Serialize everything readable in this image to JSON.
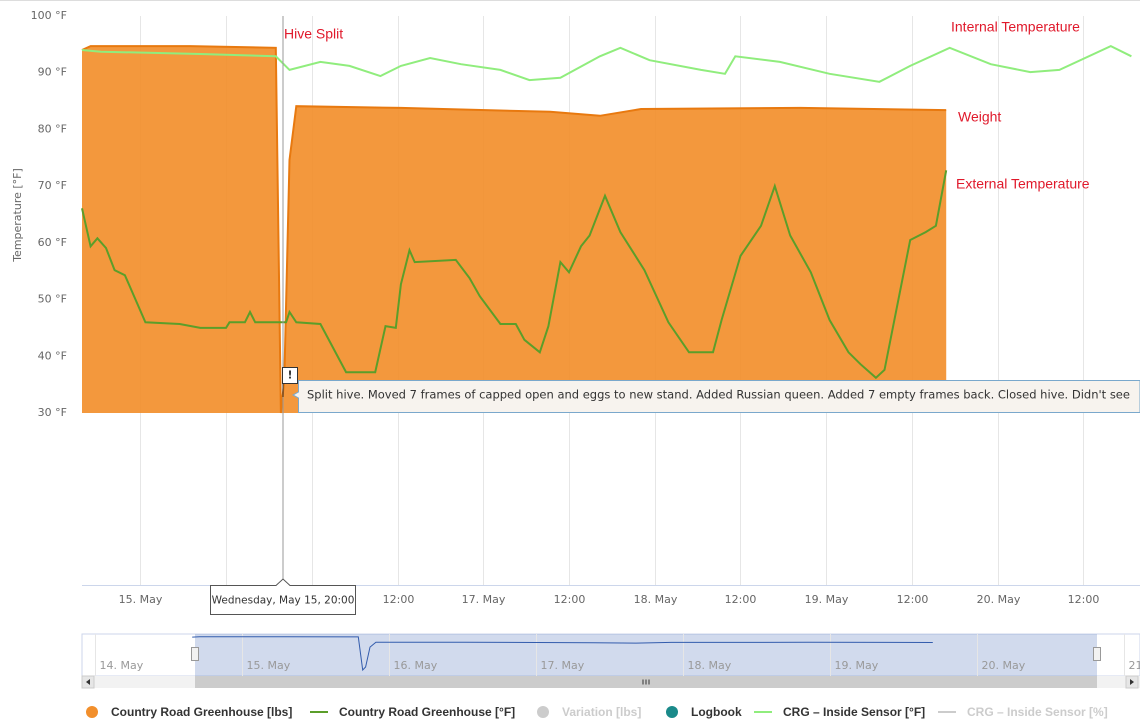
{
  "chart_data": {
    "type": "area-line",
    "y_axis_title": "Temperature [°F]",
    "ylim": [
      30,
      100
    ],
    "yticks": [
      {
        "value": 30,
        "label": "30 °F"
      },
      {
        "value": 40,
        "label": "40 °F"
      },
      {
        "value": 50,
        "label": "50 °F"
      },
      {
        "value": 60,
        "label": "60 °F"
      },
      {
        "value": 70,
        "label": "70 °F"
      },
      {
        "value": 80,
        "label": "80 °F"
      },
      {
        "value": 90,
        "label": "90 °F"
      },
      {
        "value": 100,
        "label": "100 °F"
      }
    ],
    "xlim": [
      14.66,
      20.83
    ],
    "xticks": [
      {
        "value": 15,
        "label": "15. May"
      },
      {
        "value": 15.5,
        "label": "12:00"
      },
      {
        "value": 16,
        "label": "16. May"
      },
      {
        "value": 16.5,
        "label": "12:00"
      },
      {
        "value": 17,
        "label": "17. May"
      },
      {
        "value": 17.5,
        "label": "12:00"
      },
      {
        "value": 18,
        "label": "18. May"
      },
      {
        "value": 18.5,
        "label": "12:00"
      },
      {
        "value": 19,
        "label": "19. May"
      },
      {
        "value": 19.5,
        "label": "12:00"
      },
      {
        "value": 20,
        "label": "20. May"
      },
      {
        "value": 20.5,
        "label": "12:00"
      }
    ],
    "grid": true,
    "series": [
      {
        "name": "Country Road Greenhouse [lbs]",
        "color": "#f28f2c",
        "kind": "area",
        "visible": true,
        "x": [
          14.66,
          14.71,
          15.29,
          15.79,
          15.82,
          15.84,
          15.87,
          15.91,
          16.52,
          17.39,
          17.68,
          17.92,
          18.85,
          19.7
        ],
        "values": [
          94.0,
          94.7,
          94.7,
          94.4,
          30,
          35.8,
          74.6,
          84.1,
          83.8,
          83.1,
          82.4,
          83.6,
          83.8,
          83.4
        ]
      },
      {
        "name": "Country Road Greenhouse [°F]",
        "color": "#5b9e2a",
        "kind": "line",
        "visible": true,
        "x": [
          14.66,
          14.71,
          14.75,
          14.8,
          14.85,
          14.91,
          15.03,
          15.23,
          15.35,
          15.5,
          15.52,
          15.61,
          15.64,
          15.67,
          15.85,
          15.87,
          15.91,
          16.05,
          16.2,
          16.37,
          16.43,
          16.49,
          16.52,
          16.57,
          16.6,
          16.84,
          16.92,
          16.98,
          17.1,
          17.19,
          17.24,
          17.33,
          17.38,
          17.45,
          17.5,
          17.57,
          17.62,
          17.71,
          17.8,
          17.94,
          18.08,
          18.2,
          18.34,
          18.39,
          18.5,
          18.62,
          18.7,
          18.79,
          18.91,
          19.02,
          19.13,
          19.2,
          19.29,
          19.34,
          19.49,
          19.58,
          19.64,
          19.7
        ],
        "values": [
          66.1,
          59.4,
          60.8,
          59.1,
          55.2,
          54.3,
          46.0,
          45.7,
          45.0,
          45.0,
          46.0,
          46.0,
          47.8,
          46.0,
          46.0,
          47.8,
          46.0,
          45.7,
          37.2,
          37.2,
          45.3,
          45.0,
          52.7,
          58.7,
          56.6,
          57.0,
          53.8,
          50.6,
          45.7,
          45.7,
          42.9,
          40.7,
          45.3,
          56.6,
          54.8,
          59.4,
          61.3,
          68.3,
          61.9,
          55.2,
          46.0,
          40.7,
          40.7,
          46.4,
          57.7,
          63.0,
          70.0,
          61.3,
          54.8,
          46.4,
          40.7,
          38.6,
          36.2,
          37.6,
          60.5,
          61.9,
          63.0,
          72.8
        ]
      },
      {
        "name": "Variation [lbs]",
        "color": "#cccccc",
        "kind": "dot",
        "visible": false
      },
      {
        "name": "Logbook",
        "color": "#1a8a8a",
        "kind": "dot",
        "visible": true
      },
      {
        "name": "CRG – Inside Sensor [°F]",
        "color": "#90ed7d",
        "kind": "line",
        "visible": true,
        "x": [
          14.66,
          14.77,
          15.35,
          15.79,
          15.87,
          16.05,
          16.22,
          16.4,
          16.52,
          16.69,
          16.87,
          17.1,
          17.27,
          17.45,
          17.68,
          17.8,
          17.97,
          18.27,
          18.41,
          18.47,
          18.73,
          19.02,
          19.31,
          19.49,
          19.72,
          19.96,
          20.19,
          20.36,
          20.66,
          20.78
        ],
        "values": [
          94.0,
          93.7,
          93.3,
          92.9,
          90.5,
          91.9,
          91.2,
          89.4,
          91.2,
          92.6,
          91.5,
          90.5,
          88.7,
          89.1,
          92.9,
          94.4,
          92.2,
          90.5,
          89.8,
          92.9,
          91.9,
          89.8,
          88.4,
          91.2,
          94.4,
          91.5,
          90.1,
          90.5,
          94.7,
          92.9
        ]
      },
      {
        "name": "CRG – Inside Sensor [%]",
        "color": "#cccccc",
        "kind": "line",
        "visible": false
      }
    ],
    "annotations": [
      "Hive Split",
      "Internal Temperature",
      "Weight",
      "External Temperature"
    ],
    "flag": {
      "symbol": "!",
      "text": "Split hive. Moved 7 frames of capped open and eggs to new stand. Added Russian queen. Added 7 empty frames back. Closed hive. Didn't see"
    },
    "crosshair_label": "Wednesday, May 15, 20:00",
    "navigator": {
      "xlim": [
        13.91,
        21.11
      ],
      "xticks": [
        {
          "value": 14,
          "label": "14. May"
        },
        {
          "value": 15,
          "label": "15. May"
        },
        {
          "value": 16,
          "label": "16. May"
        },
        {
          "value": 17,
          "label": "17. May"
        },
        {
          "value": 18,
          "label": "18. May"
        },
        {
          "value": 19,
          "label": "19. May"
        },
        {
          "value": 20,
          "label": "20. May"
        },
        21
      ]
    }
  }
}
